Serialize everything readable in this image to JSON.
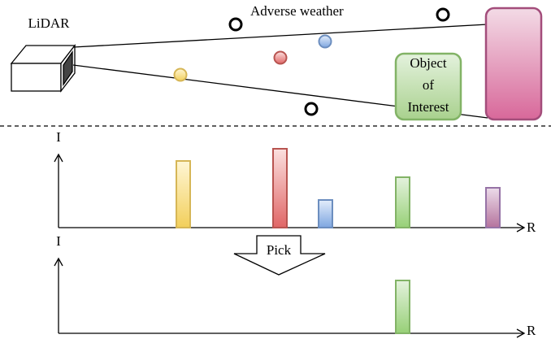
{
  "scene": {
    "sensor_label": "LiDAR",
    "weather_label": "Adverse weather",
    "object_label": [
      "Object",
      "of",
      "Interest"
    ]
  },
  "top_plot": {
    "y_label": "I",
    "x_label": "R"
  },
  "pick_label": "Pick",
  "bottom_plot": {
    "y_label": "I",
    "x_label": "R"
  }
}
